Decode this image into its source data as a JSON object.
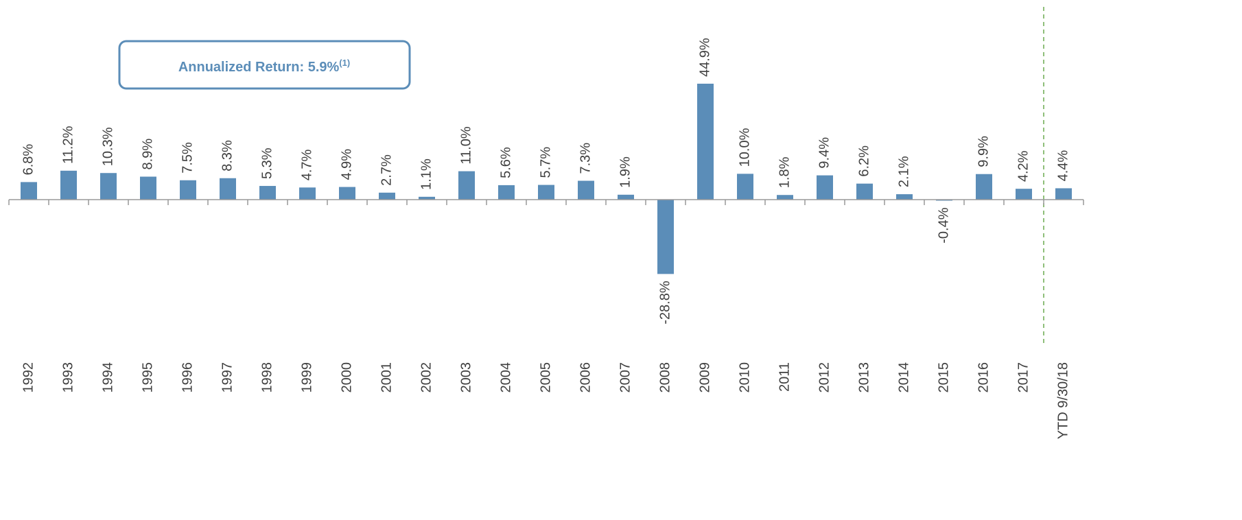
{
  "chart_data": {
    "type": "bar",
    "annotation": "Annualized Return: 5.9%",
    "annotation_note": "(1)",
    "categories": [
      "1992",
      "1993",
      "1994",
      "1995",
      "1996",
      "1997",
      "1998",
      "1999",
      "2000",
      "2001",
      "2002",
      "2003",
      "2004",
      "2005",
      "2006",
      "2007",
      "2008",
      "2009",
      "2010",
      "2011",
      "2012",
      "2013",
      "2014",
      "2015",
      "2016",
      "2017",
      "YTD 9/30/18"
    ],
    "values": [
      6.8,
      11.2,
      10.3,
      8.9,
      7.5,
      8.3,
      5.3,
      4.7,
      4.9,
      2.7,
      1.1,
      11.0,
      5.6,
      5.7,
      7.3,
      1.9,
      -28.8,
      44.9,
      10.0,
      1.8,
      9.4,
      6.2,
      2.1,
      -0.4,
      9.9,
      4.2,
      4.4
    ],
    "value_labels": [
      "6.8%",
      "11.2%",
      "10.3%",
      "8.9%",
      "7.5%",
      "8.3%",
      "5.3%",
      "4.7%",
      "4.9%",
      "2.7%",
      "1.1%",
      "11.0%",
      "5.6%",
      "5.7%",
      "7.3%",
      "1.9%",
      "-28.8%",
      "44.9%",
      "10.0%",
      "1.8%",
      "9.4%",
      "6.2%",
      "2.1%",
      "-0.4%",
      "9.9%",
      "4.2%",
      "4.4%"
    ],
    "color": "#5b8db8",
    "ylim": [
      -30,
      50
    ]
  }
}
